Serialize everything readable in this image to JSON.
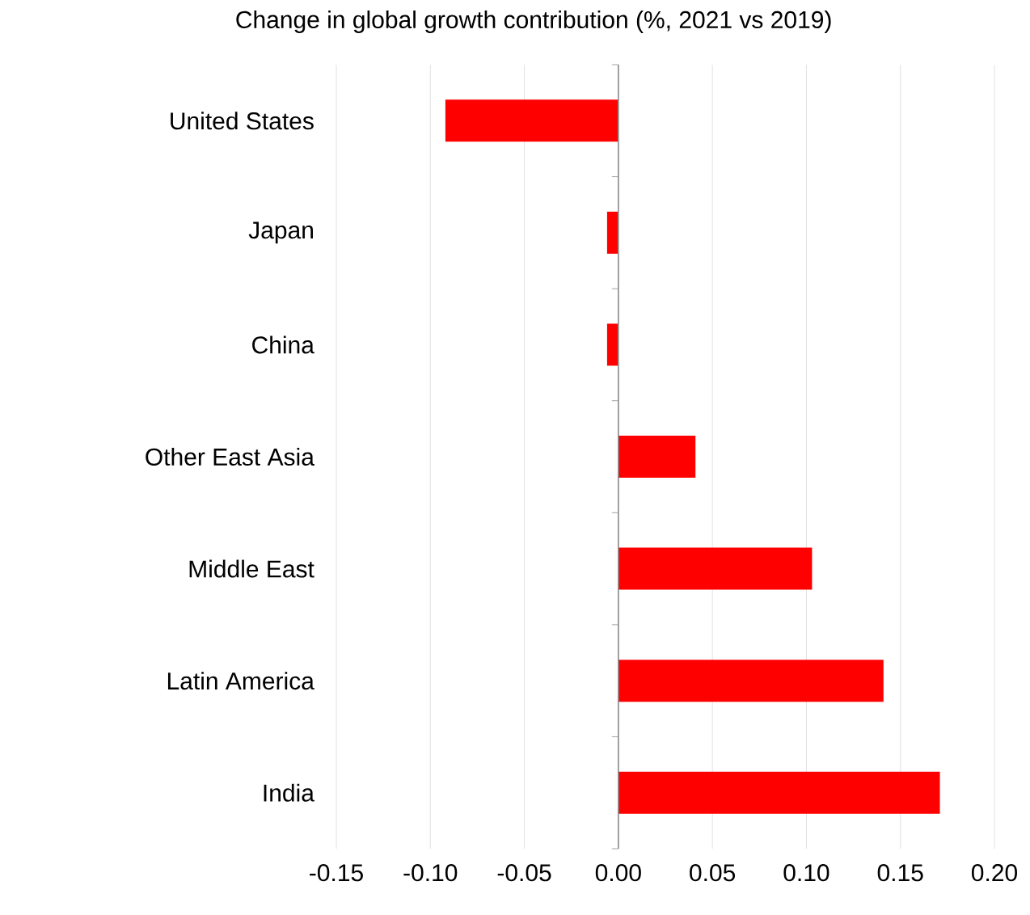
{
  "chart_data": {
    "type": "bar",
    "orientation": "horizontal",
    "title": "Change in global growth contribution (%, 2021 vs 2019)",
    "categories": [
      "United States",
      "Japan",
      "China",
      "Other East Asia",
      "Middle East",
      "Latin America",
      "India"
    ],
    "values": [
      -0.092,
      -0.006,
      -0.006,
      0.041,
      0.103,
      0.141,
      0.171
    ],
    "color": "#ff0000",
    "xlim": [
      -0.15,
      0.2
    ],
    "xticks": [
      {
        "value": -0.15,
        "label": "-0.15"
      },
      {
        "value": -0.1,
        "label": "-0.10"
      },
      {
        "value": -0.05,
        "label": "-0.05"
      },
      {
        "value": 0.0,
        "label": "0.00"
      },
      {
        "value": 0.05,
        "label": "0.05"
      },
      {
        "value": 0.1,
        "label": "0.10"
      },
      {
        "value": 0.15,
        "label": "0.15"
      },
      {
        "value": 0.2,
        "label": "0.20"
      }
    ],
    "grid": "x"
  }
}
